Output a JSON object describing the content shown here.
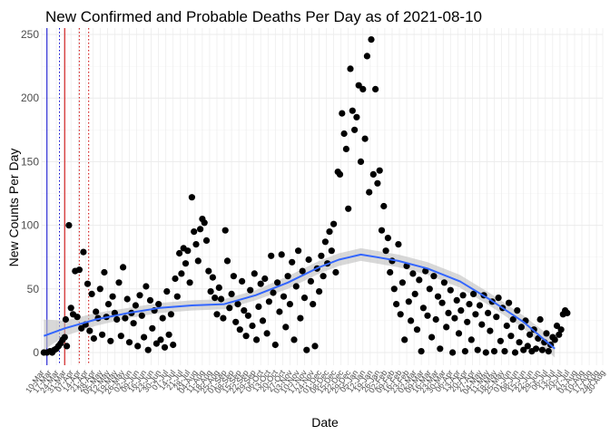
{
  "chart_data": {
    "type": "scatter",
    "title": "New Confirmed and Probable Deaths Per Day as of 2021-08-10",
    "xlabel": "Date",
    "ylabel": "New Counts Per Day",
    "xlim": [
      "2020-03-10",
      "2021-08-30"
    ],
    "ylim": [
      -10,
      255
    ],
    "yticks": [
      0,
      50,
      100,
      150,
      200,
      250
    ],
    "grid": true,
    "legend": "none",
    "colors": {
      "points": "#000000",
      "smooth_line": "#3366ff",
      "confidence_band": "#bebebe",
      "vline_blue": "#0000cc",
      "vline_red": "#cc0000",
      "grid": "#ebebeb"
    },
    "reference_lines": [
      {
        "date": "2020-03-15",
        "color": "#0000cc",
        "style": "solid"
      },
      {
        "date": "2020-03-27",
        "color": "#0000cc",
        "style": "dotted"
      },
      {
        "date": "2020-04-01",
        "color": "#cc0000",
        "style": "solid"
      },
      {
        "date": "2020-04-15",
        "color": "#cc0000",
        "style": "dotted"
      },
      {
        "date": "2020-04-24",
        "color": "#cc0000",
        "style": "dotted"
      }
    ],
    "x_tick_labels": [
      "10-Mar",
      "17-Mar",
      "24-Mar",
      "31-Mar",
      "07-Apr",
      "14-Apr",
      "21-Apr",
      "28-Apr",
      "05-May",
      "12-May",
      "19-May",
      "26-May",
      "02-Jun",
      "09-Jun",
      "16-Jun",
      "23-Jun",
      "30-Jun",
      "07-Jul",
      "14-Jul",
      "21-Jul",
      "28-Jul",
      "04-Aug",
      "11-Aug",
      "18-Aug",
      "25-Aug",
      "01-Sep",
      "08-Sep",
      "15-Sep",
      "22-Sep",
      "29-Sep",
      "06-Oct",
      "13-Oct",
      "20-Oct",
      "27-Oct",
      "03-Nov",
      "10-Nov",
      "17-Nov",
      "24-Nov",
      "01-Dec",
      "08-Dec",
      "15-Dec",
      "22-Dec",
      "29-Dec",
      "05-Jan",
      "12-Jan",
      "19-Jan",
      "26-Jan",
      "02-Feb",
      "09-Feb",
      "16-Feb",
      "23-Feb",
      "02-Mar",
      "09-Mar",
      "16-Mar",
      "23-Mar",
      "30-Mar",
      "06-Apr",
      "13-Apr",
      "20-Apr",
      "27-Apr",
      "04-May",
      "11-May",
      "18-May",
      "25-May",
      "01-Jun",
      "08-Jun",
      "15-Jun",
      "22-Jun",
      "29-Jun",
      "06-Jul",
      "13-Jul",
      "20-Jul",
      "27-Jul",
      "03-Aug",
      "10-Aug",
      "17-Aug",
      "24-Aug",
      "30-Aug"
    ],
    "smooth": [
      {
        "x": "2020-03-12",
        "y": 13
      },
      {
        "x": "2020-04-01",
        "y": 19
      },
      {
        "x": "2020-05-01",
        "y": 26
      },
      {
        "x": "2020-06-01",
        "y": 31
      },
      {
        "x": "2020-07-01",
        "y": 35
      },
      {
        "x": "2020-08-01",
        "y": 37
      },
      {
        "x": "2020-09-01",
        "y": 38
      },
      {
        "x": "2020-10-01",
        "y": 45
      },
      {
        "x": "2020-11-01",
        "y": 55
      },
      {
        "x": "2020-12-01",
        "y": 67
      },
      {
        "x": "2020-12-20",
        "y": 73
      },
      {
        "x": "2021-01-10",
        "y": 77
      },
      {
        "x": "2021-01-25",
        "y": 75
      },
      {
        "x": "2021-02-15",
        "y": 72
      },
      {
        "x": "2021-03-15",
        "y": 66
      },
      {
        "x": "2021-04-15",
        "y": 56
      },
      {
        "x": "2021-05-15",
        "y": 41
      },
      {
        "x": "2021-06-15",
        "y": 24
      },
      {
        "x": "2021-07-15",
        "y": 3
      }
    ],
    "band": [
      {
        "x": "2020-03-12",
        "lo": 2,
        "hi": 26
      },
      {
        "x": "2020-04-01",
        "lo": 13,
        "hi": 25
      },
      {
        "x": "2020-05-01",
        "lo": 21,
        "hi": 31
      },
      {
        "x": "2020-06-01",
        "lo": 27,
        "hi": 35
      },
      {
        "x": "2020-07-01",
        "lo": 31,
        "hi": 39
      },
      {
        "x": "2020-08-01",
        "lo": 33,
        "hi": 41
      },
      {
        "x": "2020-09-01",
        "lo": 34,
        "hi": 42
      },
      {
        "x": "2020-10-01",
        "lo": 41,
        "hi": 49
      },
      {
        "x": "2020-11-01",
        "lo": 50,
        "hi": 60
      },
      {
        "x": "2020-12-01",
        "lo": 62,
        "hi": 72
      },
      {
        "x": "2020-12-20",
        "lo": 68,
        "hi": 78
      },
      {
        "x": "2021-01-10",
        "lo": 72,
        "hi": 82
      },
      {
        "x": "2021-01-25",
        "lo": 70,
        "hi": 80
      },
      {
        "x": "2021-02-15",
        "lo": 67,
        "hi": 77
      },
      {
        "x": "2021-03-15",
        "lo": 61,
        "hi": 71
      },
      {
        "x": "2021-04-15",
        "lo": 51,
        "hi": 61
      },
      {
        "x": "2021-05-15",
        "lo": 36,
        "hi": 46
      },
      {
        "x": "2021-06-15",
        "lo": 19,
        "hi": 29
      },
      {
        "x": "2021-07-15",
        "lo": -4,
        "hi": 10
      }
    ],
    "points": [
      [
        "2020-03-12",
        0
      ],
      [
        "2020-03-15",
        0
      ],
      [
        "2020-03-18",
        1
      ],
      [
        "2020-03-20",
        0
      ],
      [
        "2020-03-22",
        2
      ],
      [
        "2020-03-24",
        3
      ],
      [
        "2020-03-26",
        5
      ],
      [
        "2020-03-28",
        7
      ],
      [
        "2020-03-30",
        10
      ],
      [
        "2020-04-01",
        12
      ],
      [
        "2020-04-02",
        26
      ],
      [
        "2020-04-03",
        5
      ],
      [
        "2020-04-05",
        100
      ],
      [
        "2020-04-07",
        35
      ],
      [
        "2020-04-09",
        30
      ],
      [
        "2020-04-11",
        64
      ],
      [
        "2020-04-13",
        28
      ],
      [
        "2020-04-15",
        65
      ],
      [
        "2020-04-17",
        19
      ],
      [
        "2020-04-19",
        79
      ],
      [
        "2020-04-21",
        22
      ],
      [
        "2020-04-23",
        54
      ],
      [
        "2020-04-25",
        17
      ],
      [
        "2020-04-27",
        46
      ],
      [
        "2020-04-29",
        11
      ],
      [
        "2020-05-01",
        32
      ],
      [
        "2020-05-03",
        27
      ],
      [
        "2020-05-05",
        50
      ],
      [
        "2020-05-07",
        14
      ],
      [
        "2020-05-09",
        63
      ],
      [
        "2020-05-11",
        28
      ],
      [
        "2020-05-13",
        38
      ],
      [
        "2020-05-15",
        9
      ],
      [
        "2020-05-17",
        44
      ],
      [
        "2020-05-19",
        31
      ],
      [
        "2020-05-21",
        26
      ],
      [
        "2020-05-23",
        55
      ],
      [
        "2020-05-25",
        13
      ],
      [
        "2020-05-27",
        67
      ],
      [
        "2020-05-29",
        27
      ],
      [
        "2020-05-31",
        42
      ],
      [
        "2020-06-02",
        8
      ],
      [
        "2020-06-04",
        31
      ],
      [
        "2020-06-06",
        23
      ],
      [
        "2020-06-08",
        37
      ],
      [
        "2020-06-10",
        5
      ],
      [
        "2020-06-12",
        45
      ],
      [
        "2020-06-14",
        29
      ],
      [
        "2020-06-16",
        12
      ],
      [
        "2020-06-18",
        52
      ],
      [
        "2020-06-20",
        2
      ],
      [
        "2020-06-22",
        41
      ],
      [
        "2020-06-24",
        19
      ],
      [
        "2020-06-26",
        33
      ],
      [
        "2020-06-28",
        7
      ],
      [
        "2020-06-30",
        38
      ],
      [
        "2020-07-02",
        10
      ],
      [
        "2020-07-04",
        27
      ],
      [
        "2020-07-06",
        4
      ],
      [
        "2020-07-08",
        48
      ],
      [
        "2020-07-10",
        14
      ],
      [
        "2020-07-12",
        30
      ],
      [
        "2020-07-14",
        6
      ],
      [
        "2020-07-16",
        58
      ],
      [
        "2020-07-18",
        44
      ],
      [
        "2020-07-20",
        78
      ],
      [
        "2020-07-22",
        62
      ],
      [
        "2020-07-24",
        82
      ],
      [
        "2020-07-26",
        70
      ],
      [
        "2020-07-28",
        80
      ],
      [
        "2020-07-30",
        55
      ],
      [
        "2020-08-01",
        122
      ],
      [
        "2020-08-03",
        95
      ],
      [
        "2020-08-05",
        85
      ],
      [
        "2020-08-07",
        72
      ],
      [
        "2020-08-09",
        97
      ],
      [
        "2020-08-11",
        105
      ],
      [
        "2020-08-13",
        102
      ],
      [
        "2020-08-15",
        88
      ],
      [
        "2020-08-17",
        64
      ],
      [
        "2020-08-19",
        48
      ],
      [
        "2020-08-21",
        59
      ],
      [
        "2020-08-23",
        43
      ],
      [
        "2020-08-25",
        30
      ],
      [
        "2020-08-27",
        51
      ],
      [
        "2020-08-29",
        42
      ],
      [
        "2020-08-31",
        27
      ],
      [
        "2020-09-02",
        96
      ],
      [
        "2020-09-04",
        72
      ],
      [
        "2020-09-06",
        35
      ],
      [
        "2020-09-08",
        46
      ],
      [
        "2020-09-10",
        60
      ],
      [
        "2020-09-12",
        24
      ],
      [
        "2020-09-14",
        38
      ],
      [
        "2020-09-16",
        18
      ],
      [
        "2020-09-18",
        56
      ],
      [
        "2020-09-20",
        33
      ],
      [
        "2020-09-22",
        13
      ],
      [
        "2020-09-24",
        29
      ],
      [
        "2020-09-26",
        49
      ],
      [
        "2020-09-28",
        21
      ],
      [
        "2020-09-30",
        62
      ],
      [
        "2020-10-02",
        10
      ],
      [
        "2020-10-04",
        36
      ],
      [
        "2020-10-06",
        54
      ],
      [
        "2020-10-08",
        25
      ],
      [
        "2020-10-10",
        58
      ],
      [
        "2020-10-12",
        15
      ],
      [
        "2020-10-14",
        40
      ],
      [
        "2020-10-16",
        76
      ],
      [
        "2020-10-18",
        47
      ],
      [
        "2020-10-20",
        6
      ],
      [
        "2020-10-22",
        55
      ],
      [
        "2020-10-24",
        32
      ],
      [
        "2020-10-26",
        77
      ],
      [
        "2020-10-28",
        44
      ],
      [
        "2020-10-30",
        20
      ],
      [
        "2020-11-01",
        60
      ],
      [
        "2020-11-03",
        38
      ],
      [
        "2020-11-05",
        71
      ],
      [
        "2020-11-07",
        10
      ],
      [
        "2020-11-09",
        52
      ],
      [
        "2020-11-11",
        80
      ],
      [
        "2020-11-13",
        27
      ],
      [
        "2020-11-15",
        64
      ],
      [
        "2020-11-17",
        43
      ],
      [
        "2020-11-19",
        2
      ],
      [
        "2020-11-21",
        73
      ],
      [
        "2020-11-23",
        56
      ],
      [
        "2020-11-25",
        38
      ],
      [
        "2020-11-27",
        5
      ],
      [
        "2020-11-29",
        66
      ],
      [
        "2020-12-01",
        48
      ],
      [
        "2020-12-03",
        76
      ],
      [
        "2020-12-05",
        60
      ],
      [
        "2020-12-07",
        87
      ],
      [
        "2020-12-09",
        70
      ],
      [
        "2020-12-11",
        95
      ],
      [
        "2020-12-13",
        80
      ],
      [
        "2020-12-15",
        101
      ],
      [
        "2020-12-17",
        63
      ],
      [
        "2020-12-19",
        142
      ],
      [
        "2020-12-21",
        140
      ],
      [
        "2020-12-23",
        188
      ],
      [
        "2020-12-25",
        172
      ],
      [
        "2020-12-27",
        160
      ],
      [
        "2020-12-29",
        113
      ],
      [
        "2020-12-31",
        223
      ],
      [
        "2021-01-02",
        190
      ],
      [
        "2021-01-04",
        175
      ],
      [
        "2021-01-06",
        185
      ],
      [
        "2021-01-08",
        210
      ],
      [
        "2021-01-10",
        150
      ],
      [
        "2021-01-12",
        207
      ],
      [
        "2021-01-14",
        168
      ],
      [
        "2021-01-16",
        233
      ],
      [
        "2021-01-18",
        126
      ],
      [
        "2021-01-20",
        246
      ],
      [
        "2021-01-22",
        140
      ],
      [
        "2021-01-24",
        207
      ],
      [
        "2021-01-26",
        133
      ],
      [
        "2021-01-28",
        143
      ],
      [
        "2021-01-30",
        96
      ],
      [
        "2021-02-01",
        115
      ],
      [
        "2021-02-03",
        80
      ],
      [
        "2021-02-05",
        90
      ],
      [
        "2021-02-07",
        63
      ],
      [
        "2021-02-09",
        72
      ],
      [
        "2021-02-11",
        50
      ],
      [
        "2021-02-13",
        38
      ],
      [
        "2021-02-15",
        85
      ],
      [
        "2021-02-17",
        30
      ],
      [
        "2021-02-19",
        55
      ],
      [
        "2021-02-21",
        10
      ],
      [
        "2021-02-23",
        68
      ],
      [
        "2021-02-25",
        40
      ],
      [
        "2021-02-27",
        25
      ],
      [
        "2021-03-01",
        62
      ],
      [
        "2021-03-03",
        46
      ],
      [
        "2021-03-05",
        18
      ],
      [
        "2021-03-07",
        57
      ],
      [
        "2021-03-09",
        1
      ],
      [
        "2021-03-11",
        35
      ],
      [
        "2021-03-13",
        64
      ],
      [
        "2021-03-15",
        29
      ],
      [
        "2021-03-17",
        50
      ],
      [
        "2021-03-19",
        12
      ],
      [
        "2021-03-21",
        60
      ],
      [
        "2021-03-23",
        26
      ],
      [
        "2021-03-25",
        44
      ],
      [
        "2021-03-27",
        3
      ],
      [
        "2021-03-29",
        39
      ],
      [
        "2021-03-31",
        55
      ],
      [
        "2021-04-02",
        20
      ],
      [
        "2021-04-04",
        31
      ],
      [
        "2021-04-06",
        49
      ],
      [
        "2021-04-08",
        0
      ],
      [
        "2021-04-10",
        27
      ],
      [
        "2021-04-12",
        41
      ],
      [
        "2021-04-14",
        15
      ],
      [
        "2021-04-16",
        33
      ],
      [
        "2021-04-18",
        45
      ],
      [
        "2021-04-20",
        1
      ],
      [
        "2021-04-22",
        24
      ],
      [
        "2021-04-24",
        38
      ],
      [
        "2021-04-26",
        10
      ],
      [
        "2021-04-28",
        46
      ],
      [
        "2021-04-30",
        30
      ],
      [
        "2021-05-02",
        2
      ],
      [
        "2021-05-04",
        37
      ],
      [
        "2021-05-06",
        22
      ],
      [
        "2021-05-08",
        45
      ],
      [
        "2021-05-10",
        0
      ],
      [
        "2021-05-12",
        31
      ],
      [
        "2021-05-14",
        17
      ],
      [
        "2021-05-16",
        40
      ],
      [
        "2021-05-18",
        1
      ],
      [
        "2021-05-20",
        28
      ],
      [
        "2021-05-22",
        43
      ],
      [
        "2021-05-24",
        9
      ],
      [
        "2021-05-26",
        35
      ],
      [
        "2021-05-28",
        1
      ],
      [
        "2021-05-30",
        21
      ],
      [
        "2021-06-01",
        39
      ],
      [
        "2021-06-03",
        13
      ],
      [
        "2021-06-05",
        26
      ],
      [
        "2021-06-07",
        0
      ],
      [
        "2021-06-09",
        33
      ],
      [
        "2021-06-11",
        8
      ],
      [
        "2021-06-13",
        20
      ],
      [
        "2021-06-15",
        2
      ],
      [
        "2021-06-17",
        25
      ],
      [
        "2021-06-19",
        5
      ],
      [
        "2021-06-21",
        14
      ],
      [
        "2021-06-23",
        1
      ],
      [
        "2021-06-25",
        18
      ],
      [
        "2021-06-27",
        3
      ],
      [
        "2021-06-29",
        11
      ],
      [
        "2021-07-01",
        26
      ],
      [
        "2021-07-03",
        2
      ],
      [
        "2021-07-05",
        8
      ],
      [
        "2021-07-07",
        15
      ],
      [
        "2021-07-09",
        1
      ],
      [
        "2021-07-11",
        6
      ],
      [
        "2021-07-13",
        12
      ],
      [
        "2021-07-15",
        10
      ],
      [
        "2021-07-17",
        21
      ],
      [
        "2021-07-19",
        14
      ],
      [
        "2021-07-21",
        18
      ],
      [
        "2021-07-23",
        30
      ],
      [
        "2021-07-25",
        33
      ],
      [
        "2021-07-27",
        31
      ]
    ]
  }
}
